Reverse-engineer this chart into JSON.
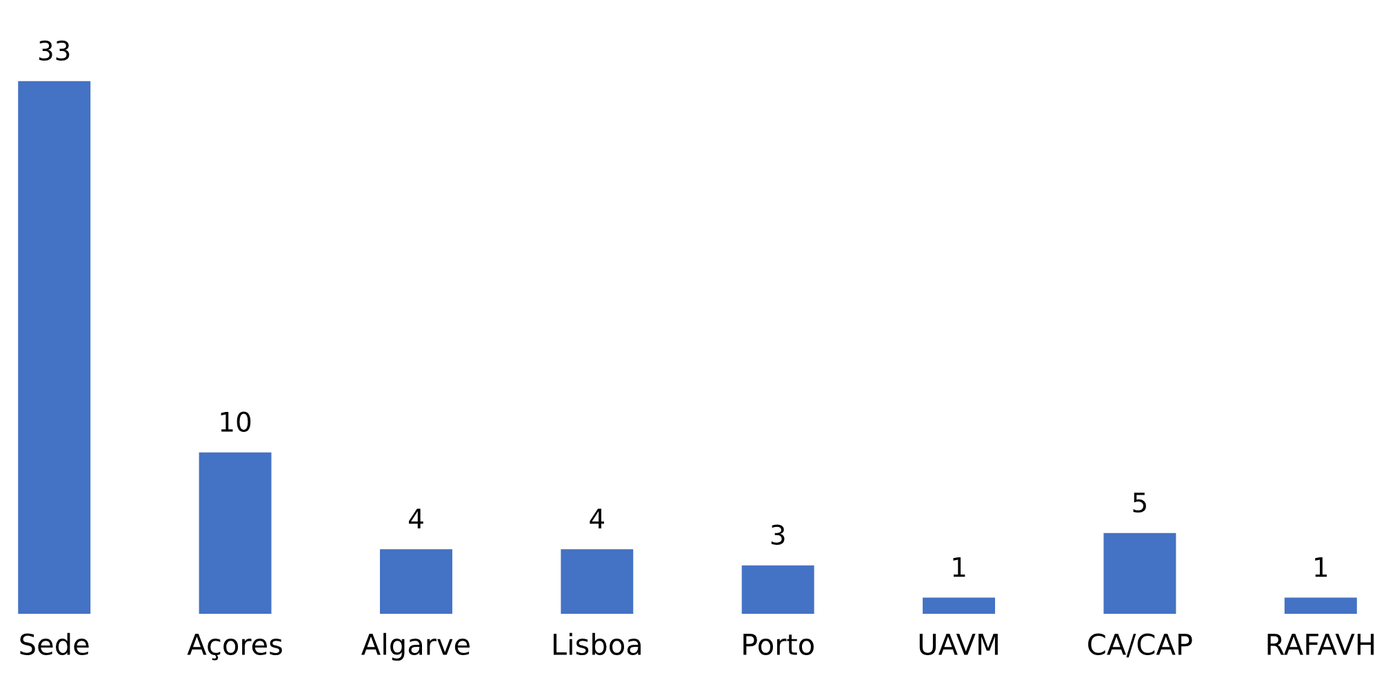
{
  "chart_data": {
    "type": "bar",
    "categories": [
      "Sede",
      "Açores",
      "Algarve",
      "Lisboa",
      "Porto",
      "UAVM",
      "CA/CAP",
      "RAFAVH"
    ],
    "values": [
      33,
      10,
      4,
      4,
      3,
      1,
      5,
      1
    ],
    "color": "#4472c4",
    "data_labels": true,
    "relative": false,
    "grid": false,
    "legend": false
  }
}
